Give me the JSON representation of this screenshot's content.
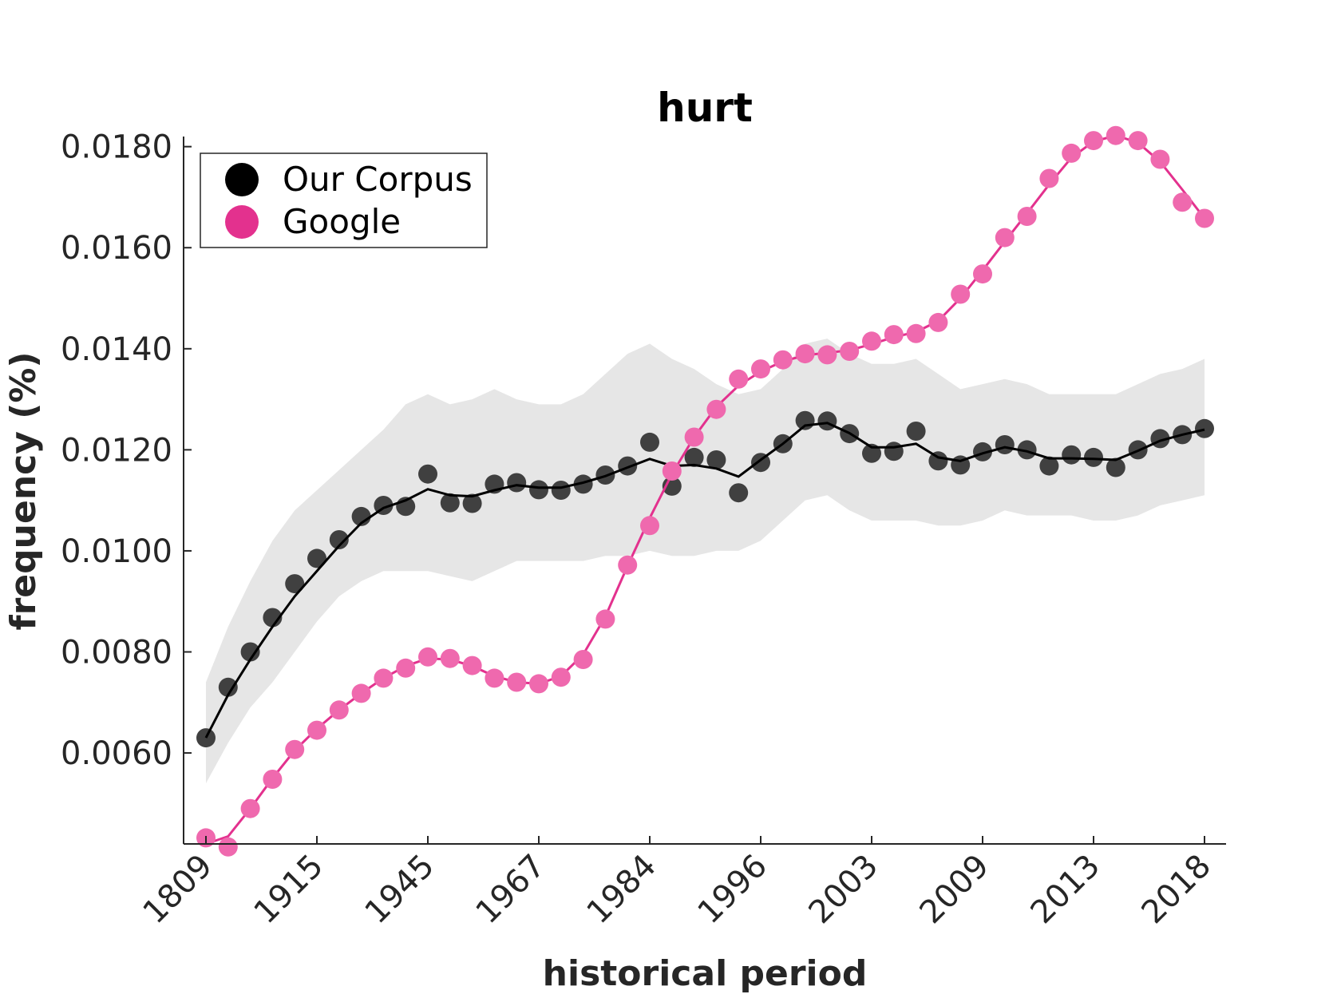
{
  "chart_data": {
    "type": "line",
    "title": "hurt",
    "xlabel": "historical period",
    "ylabel": "frequency (%)",
    "ylim": [
      0.0042,
      0.0182
    ],
    "yticks": [
      "0.0060",
      "0.0080",
      "0.0100",
      "0.0120",
      "0.0140",
      "0.0160",
      "0.0180"
    ],
    "x_tick_labels": [
      "1809",
      "1915",
      "1945",
      "1967",
      "1984",
      "1996",
      "2003",
      "2009",
      "2013",
      "2018"
    ],
    "grid": false,
    "legend_position": "top-left",
    "colors": {
      "our_corpus": "#000000",
      "our_corpus_markers": "#404040",
      "google_line": "#e3318e",
      "google_markers": "#ef69ae",
      "band": "#e6e6e6"
    },
    "series": [
      {
        "name": "Our Corpus",
        "points": [
          0.0063,
          0.0073,
          0.008,
          0.00868,
          0.00935,
          0.00985,
          0.01022,
          0.01068,
          0.0109,
          0.01088,
          0.01152,
          0.01095,
          0.01094,
          0.01132,
          0.01135,
          0.01121,
          0.0112,
          0.01132,
          0.0115,
          0.01168,
          0.01215,
          0.01128,
          0.01185,
          0.0118,
          0.01115,
          0.01175,
          0.01212,
          0.01258,
          0.01257,
          0.01232,
          0.01193,
          0.01197,
          0.01237,
          0.01178,
          0.0117,
          0.01196,
          0.0121,
          0.012,
          0.01168,
          0.0119,
          0.01185,
          0.01165,
          0.012,
          0.01222,
          0.0123,
          0.01242
        ],
        "smoothed": [
          0.0063,
          0.00715,
          0.00785,
          0.0085,
          0.0091,
          0.0096,
          0.0101,
          0.01055,
          0.01085,
          0.011,
          0.01122,
          0.0111,
          0.01108,
          0.0112,
          0.0113,
          0.01125,
          0.01125,
          0.01135,
          0.01148,
          0.01165,
          0.01182,
          0.01168,
          0.0117,
          0.01163,
          0.01147,
          0.0118,
          0.01212,
          0.01248,
          0.01253,
          0.01233,
          0.01205,
          0.01205,
          0.01212,
          0.01185,
          0.01178,
          0.01193,
          0.01205,
          0.01197,
          0.01183,
          0.01183,
          0.01182,
          0.0118,
          0.01198,
          0.01218,
          0.0123,
          0.0124
        ],
        "band_upper": [
          0.0074,
          0.0085,
          0.0094,
          0.0102,
          0.0108,
          0.0112,
          0.0116,
          0.012,
          0.0124,
          0.0129,
          0.0131,
          0.0129,
          0.013,
          0.0132,
          0.013,
          0.0129,
          0.0129,
          0.0131,
          0.0135,
          0.0139,
          0.0141,
          0.0138,
          0.0136,
          0.0133,
          0.0131,
          0.0132,
          0.0136,
          0.0141,
          0.0142,
          0.0139,
          0.0137,
          0.0137,
          0.0138,
          0.0135,
          0.0132,
          0.0133,
          0.0134,
          0.0133,
          0.0131,
          0.0131,
          0.0131,
          0.0131,
          0.0133,
          0.0135,
          0.0136,
          0.0138
        ],
        "band_lower": [
          0.0054,
          0.0062,
          0.0069,
          0.0074,
          0.008,
          0.0086,
          0.0091,
          0.0094,
          0.0096,
          0.0096,
          0.0096,
          0.0095,
          0.0094,
          0.0096,
          0.0098,
          0.0098,
          0.0098,
          0.0098,
          0.0099,
          0.0099,
          0.01,
          0.0099,
          0.0099,
          0.01,
          0.01,
          0.0102,
          0.0106,
          0.011,
          0.0111,
          0.0108,
          0.0106,
          0.0106,
          0.0106,
          0.0105,
          0.0105,
          0.0106,
          0.0108,
          0.0107,
          0.0107,
          0.0107,
          0.0106,
          0.0106,
          0.0107,
          0.0109,
          0.011,
          0.0111
        ]
      },
      {
        "name": "Google",
        "points": [
          0.00432,
          0.00414,
          0.0049,
          0.00548,
          0.00607,
          0.00645,
          0.00685,
          0.00718,
          0.00748,
          0.00768,
          0.0079,
          0.00787,
          0.00773,
          0.00748,
          0.0074,
          0.00737,
          0.0075,
          0.00785,
          0.00865,
          0.00972,
          0.0105,
          0.01158,
          0.01225,
          0.0128,
          0.0134,
          0.0136,
          0.01378,
          0.0139,
          0.01388,
          0.01395,
          0.01415,
          0.01428,
          0.0143,
          0.01452,
          0.01508,
          0.01548,
          0.0162,
          0.01662,
          0.01737,
          0.01787,
          0.01812,
          0.01822,
          0.01812,
          0.01775,
          0.0169,
          0.01658
        ],
        "smoothed": [
          0.0042,
          0.00435,
          0.0049,
          0.0055,
          0.00605,
          0.00648,
          0.00685,
          0.00718,
          0.00748,
          0.00772,
          0.00787,
          0.00785,
          0.00772,
          0.00752,
          0.0074,
          0.00737,
          0.00752,
          0.00795,
          0.0087,
          0.0097,
          0.01065,
          0.01152,
          0.01225,
          0.01285,
          0.01327,
          0.01355,
          0.01375,
          0.01387,
          0.01392,
          0.01397,
          0.01409,
          0.01423,
          0.01433,
          0.01455,
          0.015,
          0.01555,
          0.01612,
          0.01668,
          0.01725,
          0.01778,
          0.0181,
          0.01822,
          0.01808,
          0.0177,
          0.01715,
          0.01658
        ]
      }
    ]
  }
}
